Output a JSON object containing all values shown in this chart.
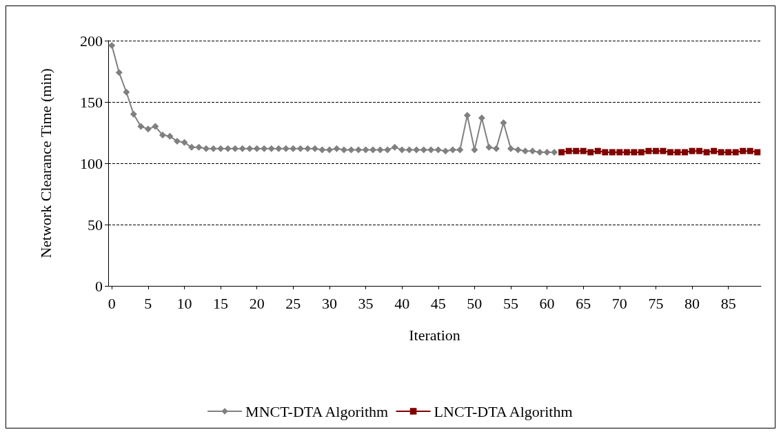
{
  "chart_data": {
    "type": "line",
    "xlabel": "Iteration",
    "ylabel": "Network Clearance Time (min)",
    "categories": [
      "0",
      null,
      null,
      null,
      null,
      "5",
      null,
      null,
      null,
      null,
      "10",
      null,
      null,
      null,
      null,
      "15",
      null,
      null,
      null,
      null,
      "20",
      null,
      null,
      null,
      null,
      "25",
      null,
      null,
      null,
      null,
      "30",
      null,
      null,
      null,
      null,
      "35",
      null,
      null,
      null,
      null,
      "40",
      null,
      null,
      null,
      null,
      "45",
      null,
      null,
      null,
      null,
      "50",
      null,
      null,
      null,
      null,
      "55",
      null,
      null,
      null,
      null,
      "60",
      null,
      null,
      null,
      null,
      "65",
      null,
      null,
      null,
      null,
      "70",
      null,
      null,
      null,
      null,
      "75",
      null,
      null,
      null,
      null,
      "80",
      null,
      null,
      null,
      null,
      "85",
      null,
      null,
      null,
      null
    ],
    "series": [
      {
        "name": "MNCT-DTA Algorithm",
        "color": "#808080",
        "marker": "diamond",
        "values": [
          196,
          174,
          158,
          140,
          130,
          128,
          130,
          123,
          122,
          118,
          117,
          113,
          113,
          112,
          112,
          112,
          112,
          112,
          112,
          112,
          112,
          112,
          112,
          112,
          112,
          112,
          112,
          112,
          112,
          111,
          111,
          112,
          111,
          111,
          111,
          111,
          111,
          111,
          111,
          113,
          111,
          111,
          111,
          111,
          111,
          111,
          110,
          111,
          111,
          139,
          111,
          137,
          113,
          112,
          133,
          112,
          111,
          110,
          110,
          109,
          109,
          109,
          null,
          null,
          null,
          null,
          null,
          null,
          null,
          null,
          null,
          null,
          null,
          null,
          null,
          null,
          null,
          null,
          null,
          null,
          null,
          null,
          null,
          null,
          null,
          null,
          null,
          null,
          null,
          null
        ]
      },
      {
        "name": "LNCT-DTA Algorithm",
        "color": "#800000",
        "marker": "square",
        "values": [
          null,
          null,
          null,
          null,
          null,
          null,
          null,
          null,
          null,
          null,
          null,
          null,
          null,
          null,
          null,
          null,
          null,
          null,
          null,
          null,
          null,
          null,
          null,
          null,
          null,
          null,
          null,
          null,
          null,
          null,
          null,
          null,
          null,
          null,
          null,
          null,
          null,
          null,
          null,
          null,
          null,
          null,
          null,
          null,
          null,
          null,
          null,
          null,
          null,
          null,
          null,
          null,
          null,
          null,
          null,
          null,
          null,
          null,
          null,
          null,
          null,
          null,
          109,
          110,
          110,
          110,
          109,
          110,
          109,
          109,
          109,
          109,
          109,
          109,
          110,
          110,
          110,
          109,
          109,
          109,
          110,
          110,
          109,
          110,
          109,
          109,
          109,
          110,
          110,
          109
        ]
      }
    ],
    "ylim": [
      0,
      200
    ],
    "yticks": [
      0,
      50,
      100,
      150,
      200
    ],
    "grid": "y",
    "legend": "bottom",
    "line_style": "solid"
  }
}
